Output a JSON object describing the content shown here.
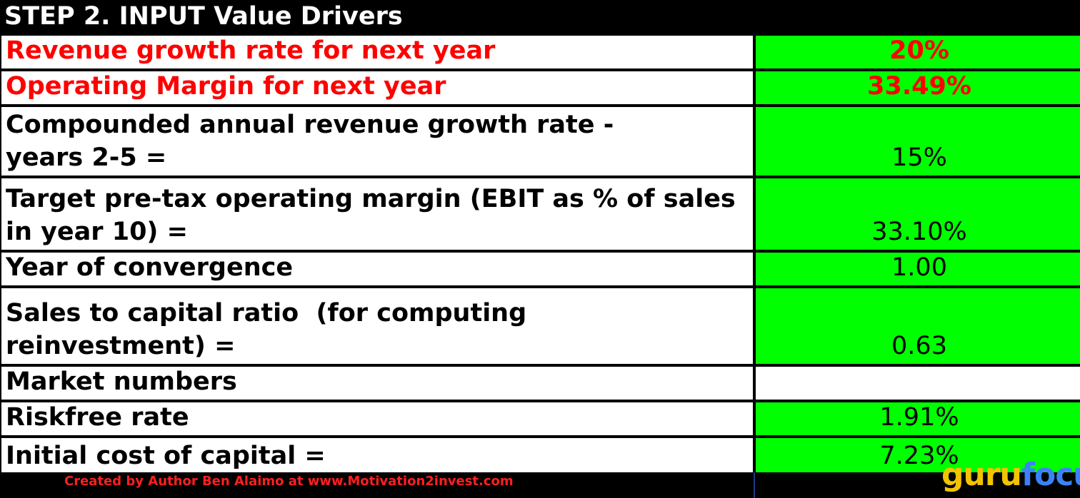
{
  "header": {
    "title": "STEP 2. INPUT Value Drivers"
  },
  "rows": [
    {
      "label": "Revenue growth rate for next year",
      "value": "20%"
    },
    {
      "label": "Operating Margin for next year",
      "value": "33.49%"
    },
    {
      "label": "Compounded annual revenue growth rate - years 2-5 =",
      "value": "15%"
    },
    {
      "label": "Target pre-tax operating margin (EBIT as % of sales in year 10) =",
      "value": "33.10%"
    },
    {
      "label": "Year of convergence",
      "value": "1.00"
    },
    {
      "label": "Sales to capital ratio  (for computing reinvestment) =",
      "value": "0.63"
    },
    {
      "label": "Market numbers",
      "value": ""
    },
    {
      "label": "Riskfree rate",
      "value": "1.91%"
    },
    {
      "label": "Initial cost of capital =",
      "value": "7.23%"
    }
  ],
  "footer": {
    "credit": "Created by Author Ben Alaimo at www.Motivation2invest.com",
    "logo_part1": "guru",
    "logo_part2": "focus"
  },
  "colors": {
    "header_bg": "#000000",
    "input_cell_bg": "#00ff00",
    "highlight_text": "#ff0000",
    "credit_text": "#ff2020",
    "logo_yellow": "#f2c400",
    "logo_blue": "#3b82f6"
  }
}
